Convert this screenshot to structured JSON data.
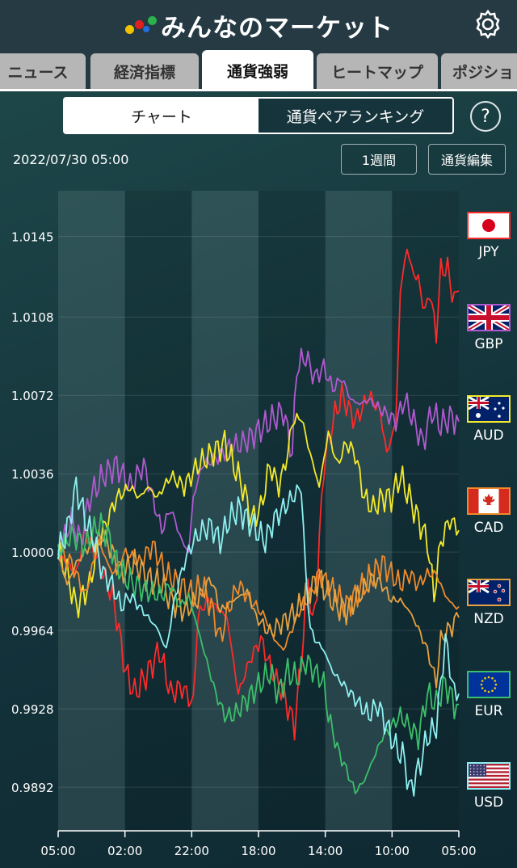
{
  "app": {
    "title": "みんなのマーケット"
  },
  "tabs": [
    "ニュース",
    "経済指標",
    "通貨強弱",
    "ヒートマップ",
    "ポジショ"
  ],
  "active_tab": 2,
  "segment": {
    "chart": "チャート",
    "ranking": "通貨ペアランキング"
  },
  "help_label": "?",
  "date": "2022/07/30 05:00",
  "buttons": {
    "period": "1週間",
    "edit": "通貨編集"
  },
  "chart_data": {
    "type": "line",
    "x_ticks": [
      "05:00",
      "02:00",
      "22:00",
      "18:00",
      "14:00",
      "10:00",
      "05:00"
    ],
    "y_ticks": [
      "1.0145",
      "1.0108",
      "1.0072",
      "1.0036",
      "1.0000",
      "0.9964",
      "0.9928",
      "0.9892"
    ],
    "ylim": [
      0.9872,
      1.0166
    ],
    "x_points": 120,
    "legend_placement": "right",
    "series": [
      {
        "name": "JPY",
        "color": "#ff2a2a",
        "keys": [
          [
            0,
            1.0
          ],
          [
            8,
            0.999
          ],
          [
            12,
            1.001
          ],
          [
            18,
            0.9995
          ],
          [
            24,
            0.998
          ],
          [
            26,
            0.997
          ],
          [
            30,
            0.9945
          ],
          [
            34,
            0.9935
          ],
          [
            40,
            0.9945
          ],
          [
            45,
            0.9955
          ],
          [
            50,
            0.9935
          ],
          [
            55,
            0.9938
          ],
          [
            60,
            0.993
          ],
          [
            62,
            0.997
          ],
          [
            66,
            0.9978
          ],
          [
            70,
            0.9975
          ],
          [
            75,
            0.997
          ],
          [
            80,
            0.9935
          ],
          [
            85,
            0.995
          ],
          [
            90,
            0.996
          ],
          [
            95,
            0.9945
          ],
          [
            100,
            0.9935
          ],
          [
            105,
            0.992
          ],
          [
            108,
            0.995
          ],
          [
            111,
            0.999
          ],
          [
            113,
            0.9965
          ],
          [
            115,
            0.9985
          ],
          [
            118,
            1.004
          ],
          [
            122,
            1.006
          ],
          [
            126,
            1.0072
          ],
          [
            132,
            1.006
          ],
          [
            138,
            1.0072
          ],
          [
            143,
            1.0065
          ],
          [
            146,
            1.0045
          ],
          [
            150,
            1.006
          ],
          [
            152,
            1.012
          ],
          [
            155,
            1.014
          ],
          [
            157,
            1.013
          ],
          [
            160,
            1.0125
          ],
          [
            163,
            1.011
          ],
          [
            165,
            1.012
          ],
          [
            168,
            1.01
          ],
          [
            170,
            1.013
          ],
          [
            173,
            1.013
          ],
          [
            176,
            1.0115
          ],
          [
            178,
            1.012
          ]
        ]
      },
      {
        "name": "GBP",
        "color": "#b05ad0",
        "keys": [
          [
            0,
            1.0
          ],
          [
            6,
            1.0015
          ],
          [
            10,
            1.0005
          ],
          [
            14,
            1.0025
          ],
          [
            20,
            1.0035
          ],
          [
            26,
            1.004
          ],
          [
            32,
            1.003
          ],
          [
            38,
            1.004
          ],
          [
            42,
            1.0025
          ],
          [
            46,
            1.001
          ],
          [
            50,
            1.002
          ],
          [
            55,
            1.0005
          ],
          [
            58,
            1.0
          ],
          [
            60,
            1.0025
          ],
          [
            64,
            1.004
          ],
          [
            70,
            1.0043
          ],
          [
            76,
            1.0048
          ],
          [
            82,
            1.005
          ],
          [
            88,
            1.0055
          ],
          [
            94,
            1.006
          ],
          [
            100,
            1.0065
          ],
          [
            104,
            1.0045
          ],
          [
            106,
            1.0085
          ],
          [
            110,
            1.009
          ],
          [
            114,
            1.008
          ],
          [
            118,
            1.0085
          ],
          [
            122,
            1.0075
          ],
          [
            126,
            1.008
          ],
          [
            130,
            1.007
          ],
          [
            134,
            1.0068
          ],
          [
            138,
            1.007
          ],
          [
            144,
            1.0065
          ],
          [
            150,
            1.006
          ],
          [
            154,
            1.007
          ],
          [
            158,
            1.006
          ],
          [
            162,
            1.005
          ],
          [
            166,
            1.0065
          ],
          [
            170,
            1.0058
          ],
          [
            174,
            1.0062
          ],
          [
            178,
            1.006
          ]
        ]
      },
      {
        "name": "AUD",
        "color": "#f4ea2a",
        "keys": [
          [
            0,
            1.0
          ],
          [
            4,
            0.999
          ],
          [
            8,
            0.9975
          ],
          [
            14,
            0.9985
          ],
          [
            18,
            1.0005
          ],
          [
            22,
            1.0015
          ],
          [
            26,
            1.0025
          ],
          [
            32,
            1.003
          ],
          [
            36,
            1.0025
          ],
          [
            40,
            1.003
          ],
          [
            44,
            1.0025
          ],
          [
            50,
            1.0035
          ],
          [
            56,
            1.003
          ],
          [
            62,
            1.004
          ],
          [
            68,
            1.0045
          ],
          [
            74,
            1.005
          ],
          [
            78,
            1.004
          ],
          [
            82,
            1.003
          ],
          [
            86,
            1.0015
          ],
          [
            90,
            1.002
          ],
          [
            94,
            1.004
          ],
          [
            98,
            1.003
          ],
          [
            102,
            1.0045
          ],
          [
            104,
            1.006
          ],
          [
            108,
            1.0062
          ],
          [
            112,
            1.0045
          ],
          [
            116,
            1.003
          ],
          [
            120,
            1.0055
          ],
          [
            124,
            1.004
          ],
          [
            128,
            1.005
          ],
          [
            132,
            1.0045
          ],
          [
            136,
            1.0025
          ],
          [
            140,
            1.002
          ],
          [
            144,
            1.0025
          ],
          [
            148,
            1.0025
          ],
          [
            152,
            1.0035
          ],
          [
            156,
            1.0025
          ],
          [
            160,
            1.0015
          ],
          [
            164,
            1.0005
          ],
          [
            167,
            0.998
          ],
          [
            170,
            1.0005
          ],
          [
            174,
            1.0015
          ],
          [
            178,
            1.001
          ]
        ]
      },
      {
        "name": "CAD",
        "color": "#f08a2a",
        "keys": [
          [
            0,
            1.0
          ],
          [
            6,
            0.9995
          ],
          [
            12,
            0.998
          ],
          [
            18,
            1.0005
          ],
          [
            24,
            0.999
          ],
          [
            30,
            1.0
          ],
          [
            36,
            0.9995
          ],
          [
            42,
            1.0003
          ],
          [
            48,
            0.999
          ],
          [
            54,
            0.9985
          ],
          [
            60,
            0.998
          ],
          [
            64,
            0.9985
          ],
          [
            68,
            0.9975
          ],
          [
            72,
            0.996
          ],
          [
            76,
            0.9975
          ],
          [
            80,
            0.9985
          ],
          [
            84,
            0.998
          ],
          [
            88,
            0.9975
          ],
          [
            92,
            0.997
          ],
          [
            96,
            0.996
          ],
          [
            100,
            0.9955
          ],
          [
            104,
            0.9965
          ],
          [
            108,
            0.9975
          ],
          [
            112,
            0.998
          ],
          [
            116,
            0.999
          ],
          [
            120,
            0.9985
          ],
          [
            124,
            0.998
          ],
          [
            128,
            0.9975
          ],
          [
            132,
            0.998
          ],
          [
            136,
            0.9985
          ],
          [
            140,
            0.999
          ],
          [
            144,
            0.9995
          ],
          [
            148,
            0.999
          ],
          [
            152,
            0.9985
          ],
          [
            156,
            0.999
          ],
          [
            160,
            0.9985
          ],
          [
            164,
            0.999
          ],
          [
            168,
            0.999
          ],
          [
            172,
            0.998
          ],
          [
            176,
            0.9975
          ],
          [
            178,
            0.9975
          ]
        ]
      },
      {
        "name": "NZD",
        "color": "#e8a240",
        "keys": [
          [
            0,
            1.0
          ],
          [
            4,
            0.9985
          ],
          [
            8,
            0.9995
          ],
          [
            14,
            1.0003
          ],
          [
            20,
            1.0008
          ],
          [
            24,
            1.0
          ],
          [
            28,
            0.999
          ],
          [
            34,
            0.9995
          ],
          [
            40,
            0.9988
          ],
          [
            46,
            0.9985
          ],
          [
            50,
            0.9978
          ],
          [
            56,
            0.9973
          ],
          [
            62,
            0.9978
          ],
          [
            68,
            0.9988
          ],
          [
            72,
            0.9973
          ],
          [
            78,
            0.9978
          ],
          [
            84,
            0.9982
          ],
          [
            88,
            0.997
          ],
          [
            94,
            0.9963
          ],
          [
            100,
            0.9968
          ],
          [
            106,
            0.9973
          ],
          [
            112,
            0.9983
          ],
          [
            116,
            0.9988
          ],
          [
            120,
            0.998
          ],
          [
            124,
            0.9975
          ],
          [
            128,
            0.9973
          ],
          [
            132,
            0.9978
          ],
          [
            136,
            0.9983
          ],
          [
            140,
            0.9988
          ],
          [
            144,
            0.9985
          ],
          [
            148,
            0.9978
          ],
          [
            152,
            0.9978
          ],
          [
            156,
            0.9973
          ],
          [
            160,
            0.9965
          ],
          [
            164,
            0.9955
          ],
          [
            168,
            0.994
          ],
          [
            170,
            0.996
          ],
          [
            174,
            0.9965
          ],
          [
            178,
            0.997
          ]
        ]
      },
      {
        "name": "EUR",
        "color": "#3cbf6a",
        "keys": [
          [
            0,
            1.0
          ],
          [
            6,
            1.0008
          ],
          [
            12,
            1.0003
          ],
          [
            18,
            1.0013
          ],
          [
            22,
            1.0008
          ],
          [
            26,
            0.9995
          ],
          [
            30,
            0.9988
          ],
          [
            34,
            0.9985
          ],
          [
            40,
            0.9982
          ],
          [
            46,
            0.998
          ],
          [
            50,
            0.9985
          ],
          [
            54,
            0.9975
          ],
          [
            58,
            0.998
          ],
          [
            62,
            0.9965
          ],
          [
            66,
            0.995
          ],
          [
            70,
            0.9935
          ],
          [
            74,
            0.9925
          ],
          [
            78,
            0.9925
          ],
          [
            82,
            0.993
          ],
          [
            86,
            0.9935
          ],
          [
            90,
            0.994
          ],
          [
            94,
            0.9945
          ],
          [
            98,
            0.9935
          ],
          [
            102,
            0.9945
          ],
          [
            106,
            0.9942
          ],
          [
            110,
            0.995
          ],
          [
            114,
            0.9945
          ],
          [
            118,
            0.994
          ],
          [
            120,
            0.9925
          ],
          [
            124,
            0.991
          ],
          [
            128,
            0.99
          ],
          [
            132,
            0.989
          ],
          [
            136,
            0.9895
          ],
          [
            140,
            0.9905
          ],
          [
            144,
            0.9915
          ],
          [
            148,
            0.992
          ],
          [
            152,
            0.9925
          ],
          [
            156,
            0.992
          ],
          [
            160,
            0.9915
          ],
          [
            164,
            0.9935
          ],
          [
            168,
            0.993
          ],
          [
            172,
            0.994
          ],
          [
            176,
            0.993
          ],
          [
            178,
            0.993
          ]
        ]
      },
      {
        "name": "USD",
        "color": "#8ef0f0",
        "keys": [
          [
            0,
            1.0
          ],
          [
            4,
            1.001
          ],
          [
            8,
            1.003
          ],
          [
            12,
            1.0015
          ],
          [
            16,
            1.0005
          ],
          [
            20,
            0.999
          ],
          [
            24,
            0.9985
          ],
          [
            28,
            0.9975
          ],
          [
            32,
            0.998
          ],
          [
            36,
            0.9975
          ],
          [
            40,
            0.997
          ],
          [
            44,
            0.9965
          ],
          [
            48,
            0.9955
          ],
          [
            52,
            0.998
          ],
          [
            56,
            0.9995
          ],
          [
            60,
            1.0005
          ],
          [
            64,
            1.001
          ],
          [
            68,
            1.0012
          ],
          [
            72,
            1.0005
          ],
          [
            76,
            1.0015
          ],
          [
            80,
            1.002
          ],
          [
            84,
            1.0015
          ],
          [
            88,
            1.001
          ],
          [
            92,
            1.0005
          ],
          [
            96,
            1.0015
          ],
          [
            100,
            1.002
          ],
          [
            104,
            1.0025
          ],
          [
            108,
            1.003
          ],
          [
            110,
            0.999
          ],
          [
            112,
            0.9965
          ],
          [
            114,
            0.996
          ],
          [
            118,
            0.9955
          ],
          [
            122,
            0.9945
          ],
          [
            126,
            0.994
          ],
          [
            130,
            0.9935
          ],
          [
            134,
            0.993
          ],
          [
            138,
            0.9925
          ],
          [
            142,
            0.993
          ],
          [
            146,
            0.992
          ],
          [
            150,
            0.991
          ],
          [
            154,
            0.9905
          ],
          [
            156,
            0.989
          ],
          [
            160,
            0.99
          ],
          [
            164,
            0.9915
          ],
          [
            168,
            0.992
          ],
          [
            172,
            0.996
          ],
          [
            176,
            0.9935
          ],
          [
            178,
            0.9935
          ]
        ]
      }
    ]
  }
}
